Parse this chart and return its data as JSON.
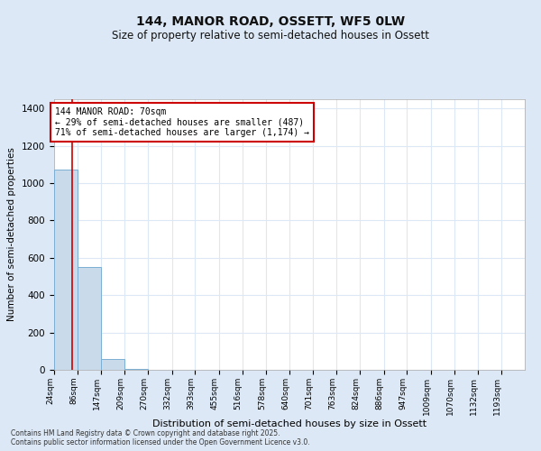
{
  "title": "144, MANOR ROAD, OSSETT, WF5 0LW",
  "subtitle": "Size of property relative to semi-detached houses in Ossett",
  "xlabel": "Distribution of semi-detached houses by size in Ossett",
  "ylabel": "Number of semi-detached properties",
  "bar_edges": [
    24,
    86,
    147,
    209,
    270,
    332,
    393,
    455,
    516,
    578,
    640,
    701,
    763,
    824,
    886,
    947,
    1009,
    1070,
    1132,
    1193,
    1255
  ],
  "bar_heights": [
    1075,
    550,
    60,
    5,
    2,
    1,
    1,
    0,
    0,
    0,
    0,
    0,
    0,
    0,
    0,
    0,
    0,
    0,
    0,
    0
  ],
  "bar_color": "#c9daea",
  "bar_edgecolor": "#7bafd4",
  "property_size": 70,
  "property_line_color": "#cc0000",
  "annotation_text": "144 MANOR ROAD: 70sqm\n← 29% of semi-detached houses are smaller (487)\n71% of semi-detached houses are larger (1,174) →",
  "annotation_box_color": "#ffffff",
  "annotation_box_edgecolor": "#cc0000",
  "ylim": [
    0,
    1450
  ],
  "yticks": [
    0,
    200,
    400,
    600,
    800,
    1000,
    1200,
    1400
  ],
  "background_color": "#dce8f5",
  "plot_background_color": "#ffffff",
  "footer_line1": "Contains HM Land Registry data © Crown copyright and database right 2025.",
  "footer_line2": "Contains public sector information licensed under the Open Government Licence v3.0.",
  "grid_color": "#dce8f5",
  "title_fontsize": 10,
  "subtitle_fontsize": 8.5,
  "ylabel_fontsize": 7.5,
  "xlabel_fontsize": 8,
  "tick_label_fontsize": 6.5,
  "annotation_fontsize": 7,
  "footer_fontsize": 5.5
}
